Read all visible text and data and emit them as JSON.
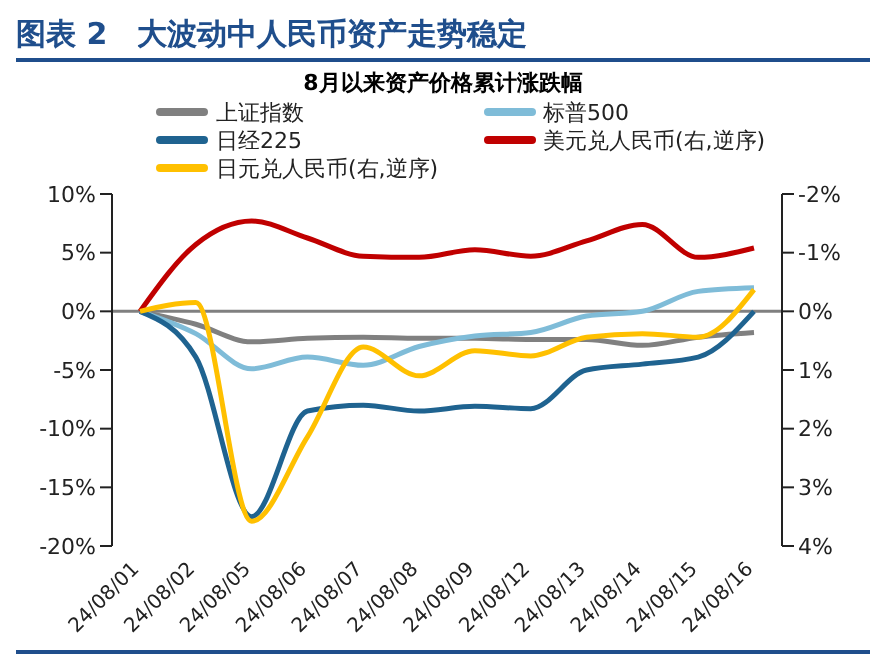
{
  "chart_data": {
    "type": "line",
    "title": "图表 2　大波动中人民币资产走势稳定",
    "subtitle": "8月以来资产价格累计涨跌幅",
    "categories": [
      "24/08/01",
      "24/08/02",
      "24/08/05",
      "24/08/06",
      "24/08/07",
      "24/08/08",
      "24/08/09",
      "24/08/12",
      "24/08/13",
      "24/08/14",
      "24/08/15",
      "24/08/16"
    ],
    "series": [
      {
        "name": "上证指数",
        "color": "#808080",
        "values": [
          0,
          -1.1,
          -2.6,
          -2.3,
          -2.2,
          -2.3,
          -2.3,
          -2.4,
          -2.4,
          -2.9,
          -2.2,
          -1.8
        ]
      },
      {
        "name": "标普500",
        "color": "#7fbcd8",
        "values": [
          0,
          -1.9,
          -4.9,
          -3.9,
          -4.6,
          -3.0,
          -2.1,
          -1.8,
          -0.4,
          0,
          1.7,
          2.0
        ]
      },
      {
        "name": "日经225",
        "color": "#1f6390",
        "values": [
          0,
          -3.9,
          -17.5,
          -8.5,
          -8.0,
          -8.5,
          -8.1,
          -8.3,
          -5.0,
          -4.5,
          -3.9,
          0
        ]
      },
      {
        "name": "美元兑人民币(右,逆序)",
        "color": "#c00000",
        "axis": "y2",
        "values": [
          0,
          -1.14,
          -1.54,
          -1.25,
          -0.94,
          -0.92,
          -1.05,
          -0.94,
          -1.2,
          -1.48,
          -0.92,
          -1.08
        ]
      },
      {
        "name": "日元兑人民币(右,逆序)",
        "color": "#ffc000",
        "axis": "y2",
        "values": [
          0,
          -0.15,
          3.58,
          2.14,
          0.61,
          1.1,
          0.67,
          0.76,
          0.44,
          0.38,
          0.44,
          -0.37
        ]
      }
    ],
    "ylim": [
      -20,
      10
    ],
    "yticks": [
      {
        "value": -20,
        "label": "-20%"
      },
      {
        "value": -15,
        "label": "-15%"
      },
      {
        "value": -10,
        "label": "-10%"
      },
      {
        "value": -5,
        "label": "-5%"
      },
      {
        "value": 0,
        "label": "0%"
      },
      {
        "value": 5,
        "label": "5%"
      },
      {
        "value": 10,
        "label": "10%"
      }
    ],
    "y2lim": [
      4,
      -2
    ],
    "y2ticks": [
      {
        "value": -2,
        "label": "-2%"
      },
      {
        "value": -1,
        "label": "-1%"
      },
      {
        "value": 0,
        "label": "0%"
      },
      {
        "value": 1,
        "label": "1%"
      },
      {
        "value": 2,
        "label": "2%"
      },
      {
        "value": 3,
        "label": "3%"
      },
      {
        "value": 4,
        "label": "4%"
      }
    ],
    "ref_lines": [
      {
        "axis": "y",
        "value": 0,
        "color": "#808080"
      }
    ],
    "legend": "top",
    "grid": false,
    "marker": "none",
    "line_style": "solid"
  }
}
